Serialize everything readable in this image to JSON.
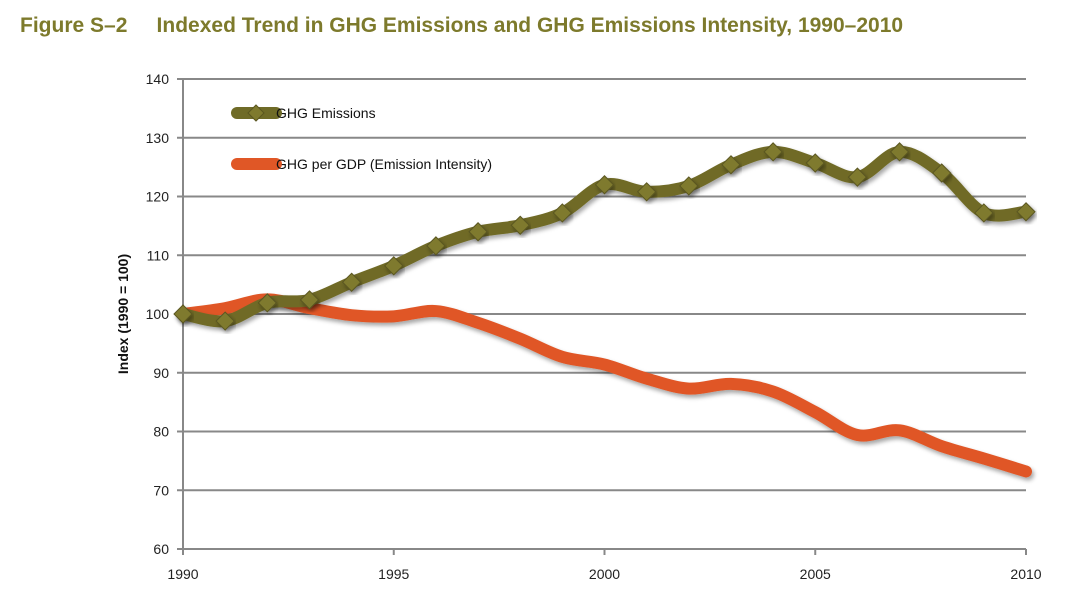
{
  "chart_data": {
    "type": "line",
    "title": "Figure S–2     Indexed Trend in GHG Emissions and GHG Emissions Intensity, 1990–2010",
    "xlabel": "",
    "ylabel": "Index (1990 = 100)",
    "xlim": [
      1990,
      2010
    ],
    "ylim": [
      60,
      140
    ],
    "xticks": [
      "1990",
      "1995",
      "2000",
      "2005",
      "2010"
    ],
    "yticks": [
      "60",
      "70",
      "80",
      "90",
      "100",
      "110",
      "120",
      "130",
      "140"
    ],
    "grid": "horizontal",
    "legend": "top-left",
    "x": [
      1990,
      1991,
      1992,
      1993,
      1994,
      1995,
      1996,
      1997,
      1998,
      1999,
      2000,
      2001,
      2002,
      2003,
      2004,
      2005,
      2006,
      2007,
      2008,
      2009,
      2010
    ],
    "series": [
      {
        "name": "GHG Emissions",
        "color": "#6f6b27",
        "marker": "diamond",
        "values": [
          100,
          98.8,
          101.9,
          102.4,
          105.4,
          108.2,
          111.6,
          114,
          115.1,
          117.2,
          122,
          120.8,
          121.8,
          125.4,
          127.6,
          125.7,
          123.3,
          127.6,
          124,
          117.2,
          117.4
        ]
      },
      {
        "name": "GHG per GDP  (Emission  Intensity)",
        "color": "#e05726",
        "marker": "none",
        "values": [
          100,
          101,
          102.5,
          101,
          99.8,
          99.6,
          100.5,
          98.5,
          95.8,
          92.7,
          91.4,
          89,
          87.3,
          88.1,
          86.8,
          83.3,
          79.4,
          80.2,
          77.5,
          75.4,
          73.2
        ]
      }
    ]
  }
}
